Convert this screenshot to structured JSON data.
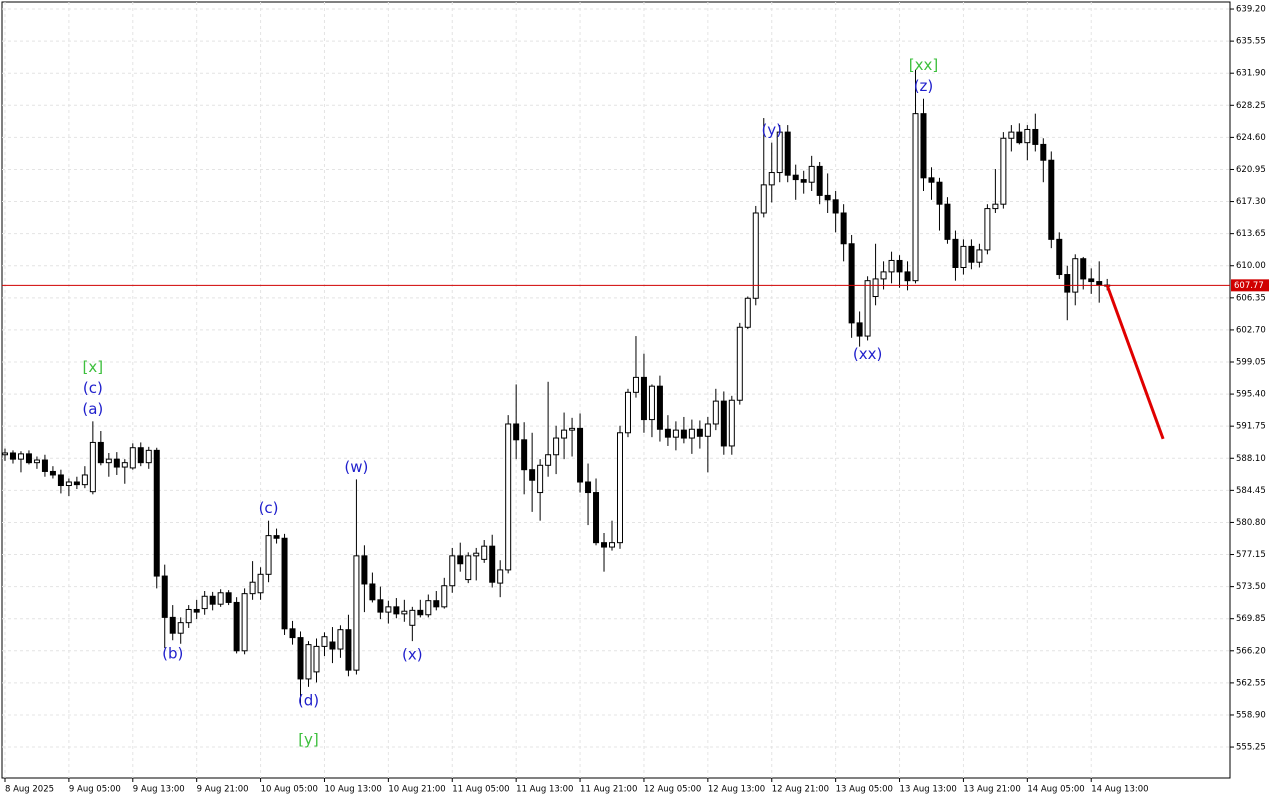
{
  "chart_data": {
    "type": "candlestick",
    "categories": [
      "8 Aug 2025",
      null,
      null,
      null,
      null,
      null,
      null,
      null,
      "9 Aug 05:00",
      null,
      null,
      null,
      null,
      null,
      null,
      null,
      "9 Aug 13:00",
      null,
      null,
      null,
      null,
      null,
      null,
      null,
      "9 Aug 21:00",
      null,
      null,
      null,
      null,
      null,
      null,
      null,
      "10 Aug 05:00",
      null,
      null,
      null,
      null,
      null,
      null,
      null,
      "10 Aug 13:00",
      null,
      null,
      null,
      null,
      null,
      null,
      null,
      "10 Aug 21:00",
      null,
      null,
      null,
      null,
      null,
      null,
      null,
      "11 Aug 05:00",
      null,
      null,
      null,
      null,
      null,
      null,
      null,
      "11 Aug 13:00",
      null,
      null,
      null,
      null,
      null,
      null,
      null,
      "11 Aug 21:00",
      null,
      null,
      null,
      null,
      null,
      null,
      null,
      "12 Aug 05:00",
      null,
      null,
      null,
      null,
      null,
      null,
      null,
      "12 Aug 13:00",
      null,
      null,
      null,
      null,
      null,
      null,
      null,
      "12 Aug 21:00",
      null,
      null,
      null,
      null,
      null,
      null,
      null,
      "13 Aug 05:00",
      null,
      null,
      null,
      null,
      null,
      null,
      null,
      "13 Aug 13:00",
      null,
      null,
      null,
      null,
      null,
      null,
      null,
      "13 Aug 21:00",
      null,
      null,
      null,
      null,
      null,
      null,
      null,
      "14 Aug 05:00",
      null,
      null,
      null,
      null,
      null,
      null,
      null,
      "14 Aug 13:00",
      null,
      null
    ],
    "ohlc": [
      [
        588.5,
        589.2,
        587.8,
        588.7
      ],
      [
        588.7,
        589.0,
        587.5,
        588.0
      ],
      [
        588.0,
        588.9,
        586.5,
        588.6
      ],
      [
        588.6,
        589.0,
        587.4,
        587.6
      ],
      [
        587.6,
        588.3,
        586.9,
        587.9
      ],
      [
        587.9,
        588.5,
        586.0,
        586.6
      ],
      [
        586.6,
        587.2,
        585.8,
        586.2
      ],
      [
        586.2,
        586.8,
        584.1,
        585.0
      ],
      [
        585.0,
        585.8,
        583.8,
        585.4
      ],
      [
        585.4,
        586.0,
        584.6,
        585.1
      ],
      [
        585.1,
        587.2,
        584.7,
        586.2
      ],
      [
        584.3,
        592.3,
        584.0,
        589.9
      ],
      [
        589.9,
        591.2,
        587.3,
        587.6
      ],
      [
        587.6,
        588.7,
        586.0,
        588.0
      ],
      [
        588.0,
        588.8,
        586.2,
        587.1
      ],
      [
        587.1,
        588.0,
        585.2,
        587.6
      ],
      [
        587.0,
        589.8,
        586.8,
        589.3
      ],
      [
        589.3,
        589.9,
        587.2,
        587.6
      ],
      [
        587.6,
        589.4,
        586.9,
        589.0
      ],
      [
        589.0,
        589.3,
        573.3,
        574.7
      ],
      [
        574.7,
        576.0,
        566.5,
        570.0
      ],
      [
        570.0,
        571.4,
        567.4,
        568.2
      ],
      [
        568.2,
        570.0,
        567.0,
        569.4
      ],
      [
        569.4,
        571.4,
        568.8,
        570.9
      ],
      [
        570.9,
        572.0,
        569.8,
        570.6
      ],
      [
        571.0,
        573.0,
        570.3,
        572.4
      ],
      [
        572.4,
        572.9,
        570.8,
        571.5
      ],
      [
        571.5,
        573.2,
        571.2,
        572.8
      ],
      [
        572.8,
        573.1,
        571.4,
        571.7
      ],
      [
        571.7,
        572.3,
        565.9,
        566.2
      ],
      [
        566.2,
        573.3,
        565.8,
        572.7
      ],
      [
        572.7,
        576.4,
        572.0,
        574.0
      ],
      [
        572.8,
        575.7,
        572.0,
        574.9
      ],
      [
        574.9,
        581.0,
        574.0,
        579.3
      ],
      [
        579.3,
        580.1,
        578.4,
        579.0
      ],
      [
        579.0,
        579.5,
        568.0,
        568.7
      ],
      [
        568.7,
        569.6,
        566.9,
        567.7
      ],
      [
        567.7,
        568.4,
        560.1,
        563.0
      ],
      [
        563.0,
        567.3,
        562.1,
        566.9
      ],
      [
        563.8,
        567.6,
        562.6,
        566.7
      ],
      [
        566.7,
        568.3,
        565.6,
        567.8
      ],
      [
        567.2,
        568.9,
        564.8,
        566.4
      ],
      [
        566.4,
        569.1,
        565.4,
        568.6
      ],
      [
        568.6,
        570.3,
        563.3,
        564.0
      ],
      [
        564.0,
        585.7,
        563.5,
        577.0
      ],
      [
        577.0,
        578.2,
        570.6,
        573.8
      ],
      [
        573.8,
        575.1,
        571.7,
        572.0
      ],
      [
        572.0,
        573.5,
        569.8,
        570.6
      ],
      [
        570.6,
        571.9,
        569.3,
        571.2
      ],
      [
        571.2,
        572.2,
        569.9,
        570.4
      ],
      [
        570.4,
        572.0,
        569.5,
        570.7
      ],
      [
        569.1,
        571.2,
        567.3,
        570.8
      ],
      [
        570.8,
        572.0,
        570.0,
        570.3
      ],
      [
        570.3,
        572.6,
        570.0,
        571.9
      ],
      [
        571.9,
        573.0,
        570.8,
        571.2
      ],
      [
        571.2,
        574.5,
        571.0,
        573.6
      ],
      [
        573.6,
        577.9,
        572.8,
        577.0
      ],
      [
        577.0,
        578.5,
        575.2,
        576.1
      ],
      [
        574.3,
        577.4,
        573.9,
        577.0
      ],
      [
        577.0,
        577.9,
        574.2,
        577.3
      ],
      [
        576.6,
        578.8,
        576.2,
        578.1
      ],
      [
        578.1,
        579.4,
        573.4,
        574.0
      ],
      [
        573.9,
        576.5,
        572.3,
        575.4
      ],
      [
        575.4,
        593.0,
        575.0,
        592.0
      ],
      [
        592.0,
        596.5,
        588.0,
        590.2
      ],
      [
        590.2,
        592.2,
        584.0,
        586.8
      ],
      [
        586.8,
        591.0,
        582.0,
        585.6
      ],
      [
        584.2,
        588.0,
        581.0,
        587.3
      ],
      [
        587.3,
        596.8,
        586.0,
        588.5
      ],
      [
        588.5,
        591.8,
        586.3,
        590.4
      ],
      [
        590.4,
        593.3,
        588.0,
        591.3
      ],
      [
        591.3,
        592.7,
        588.3,
        591.5
      ],
      [
        591.5,
        593.2,
        584.2,
        585.4
      ],
      [
        585.4,
        587.5,
        580.5,
        584.2
      ],
      [
        584.2,
        585.8,
        578.2,
        578.5
      ],
      [
        578.5,
        579.6,
        575.2,
        578.0
      ],
      [
        578.0,
        581.0,
        577.6,
        578.5
      ],
      [
        578.5,
        591.8,
        577.8,
        591.0
      ],
      [
        591.0,
        596.0,
        590.5,
        595.6
      ],
      [
        595.6,
        602.0,
        595.0,
        597.3
      ],
      [
        597.3,
        600.0,
        591.0,
        592.5
      ],
      [
        592.5,
        596.5,
        590.5,
        596.3
      ],
      [
        596.3,
        597.5,
        590.0,
        591.4
      ],
      [
        591.4,
        593.0,
        589.5,
        590.5
      ],
      [
        590.5,
        592.3,
        589.0,
        591.3
      ],
      [
        591.3,
        592.8,
        589.8,
        590.4
      ],
      [
        590.4,
        592.5,
        588.6,
        591.4
      ],
      [
        591.4,
        592.4,
        589.2,
        590.6
      ],
      [
        590.6,
        592.8,
        586.5,
        592.0
      ],
      [
        592.0,
        596.0,
        591.3,
        594.6
      ],
      [
        594.6,
        595.7,
        588.5,
        589.5
      ],
      [
        589.5,
        595.2,
        588.5,
        594.7
      ],
      [
        594.7,
        603.5,
        594.2,
        603.0
      ],
      [
        603.0,
        606.5,
        602.8,
        606.3
      ],
      [
        606.3,
        616.8,
        605.5,
        616.0
      ],
      [
        616.0,
        626.8,
        615.5,
        619.2
      ],
      [
        619.2,
        624.0,
        617.2,
        620.6
      ],
      [
        620.6,
        626.0,
        619.5,
        625.2
      ],
      [
        625.2,
        626.0,
        619.5,
        620.3
      ],
      [
        620.3,
        621.5,
        617.5,
        619.8
      ],
      [
        619.8,
        620.8,
        618.2,
        619.5
      ],
      [
        619.5,
        622.5,
        618.5,
        621.3
      ],
      [
        621.3,
        621.8,
        617.0,
        618.0
      ],
      [
        618.0,
        620.5,
        616.0,
        617.5
      ],
      [
        617.5,
        618.5,
        613.8,
        616.0
      ],
      [
        616.0,
        617.0,
        610.5,
        612.5
      ],
      [
        612.5,
        613.5,
        601.8,
        603.5
      ],
      [
        603.5,
        604.8,
        600.8,
        602.0
      ],
      [
        602.0,
        608.8,
        601.5,
        608.3
      ],
      [
        606.5,
        612.5,
        605.5,
        608.5
      ],
      [
        608.5,
        610.5,
        607.3,
        609.3
      ],
      [
        609.3,
        611.6,
        608.0,
        610.6
      ],
      [
        610.6,
        611.2,
        607.5,
        609.3
      ],
      [
        609.3,
        610.5,
        607.2,
        608.3
      ],
      [
        608.3,
        632.3,
        608.0,
        627.3
      ],
      [
        627.3,
        629.0,
        618.5,
        620.0
      ],
      [
        620.0,
        621.2,
        617.5,
        619.5
      ],
      [
        619.5,
        620.0,
        614.0,
        617.0
      ],
      [
        617.0,
        617.8,
        612.5,
        613.0
      ],
      [
        613.0,
        614.0,
        608.3,
        609.8
      ],
      [
        609.8,
        613.0,
        609.0,
        612.2
      ],
      [
        612.2,
        613.0,
        609.6,
        610.4
      ],
      [
        610.4,
        612.5,
        609.8,
        611.8
      ],
      [
        611.8,
        617.0,
        611.3,
        616.5
      ],
      [
        616.5,
        621.0,
        616.0,
        617.0
      ],
      [
        617.0,
        625.2,
        616.5,
        624.5
      ],
      [
        624.5,
        626.0,
        623.0,
        625.2
      ],
      [
        625.2,
        626.2,
        623.8,
        624.0
      ],
      [
        624.0,
        626.0,
        622.0,
        625.5
      ],
      [
        625.5,
        627.3,
        623.0,
        623.8
      ],
      [
        623.8,
        624.5,
        619.5,
        622.0
      ],
      [
        622.0,
        623.0,
        612.0,
        613.0
      ],
      [
        613.0,
        613.8,
        608.5,
        609.0
      ],
      [
        609.0,
        610.0,
        603.8,
        607.0
      ],
      [
        607.0,
        611.3,
        605.5,
        610.8
      ],
      [
        610.8,
        611.0,
        607.3,
        608.5
      ],
      [
        608.5,
        609.7,
        606.8,
        608.2
      ],
      [
        608.2,
        610.5,
        605.8,
        607.8
      ],
      [
        607.8,
        608.5,
        607.2,
        607.77
      ]
    ],
    "up_color": "#ffffff",
    "down_color": "#000000",
    "wick_color": "#000000",
    "xlim": [
      -0.375,
      153.375
    ],
    "ylim": [
      551.73,
      640.0
    ],
    "yticks": [
      {
        "value": 639.2,
        "label": "639.20"
      },
      635.55,
      {
        "value": 631.9,
        "label": "631.90"
      },
      628.25,
      {
        "value": 624.6,
        "label": "624.60"
      },
      620.95,
      {
        "value": 617.3,
        "label": "617.30"
      },
      613.65,
      {
        "value": 610,
        "label": "610.00"
      },
      606.35,
      {
        "value": 602.7,
        "label": "602.70"
      },
      599.05,
      {
        "value": 595.4,
        "label": "595.40"
      },
      591.75,
      {
        "value": 588.1,
        "label": "588.10"
      },
      584.45,
      {
        "value": 580.8,
        "label": "580.80"
      },
      577.15,
      {
        "value": 573.5,
        "label": "573.50"
      },
      569.85,
      {
        "value": 566.2,
        "label": "566.20"
      },
      562.55,
      {
        "value": 558.9,
        "label": "558.90"
      },
      555.25
    ],
    "grid": true,
    "current_price": 607.77,
    "current_price_color": "#d00000",
    "forecast": {
      "x": [
        138,
        145
      ],
      "values": [
        607.77,
        590.3
      ],
      "color": "#e00000"
    },
    "annotations": [
      {
        "text": "(a)",
        "candle": 11,
        "side": "above",
        "color": "#1f1fcc"
      },
      {
        "text": "(c)",
        "candle": 11,
        "side": "above",
        "color": "#1f1fcc"
      },
      {
        "text": "[x]",
        "candle": 11,
        "side": "above",
        "color": "#3cbf3c"
      },
      {
        "text": "(b)",
        "candle": 21,
        "side": "below",
        "color": "#1f1fcc"
      },
      {
        "text": "(c)",
        "candle": 33,
        "side": "above",
        "color": "#1f1fcc"
      },
      {
        "text": "(d)",
        "candle": 38,
        "side": "below",
        "color": "#1f1fcc"
      },
      {
        "text": "[y]",
        "candle": 38,
        "side": "below",
        "color": "#3cbf3c"
      },
      {
        "text": "(w)",
        "candle": 44,
        "side": "above",
        "color": "#1f1fcc"
      },
      {
        "text": "(x)",
        "candle": 51,
        "side": "below",
        "color": "#1f1fcc"
      },
      {
        "text": "(y)",
        "candle": 96,
        "side": "above",
        "color": "#1f1fcc"
      },
      {
        "text": "(xx)",
        "candle": 108,
        "side": "below",
        "color": "#1f1fcc"
      },
      {
        "text": "(z)",
        "candle": 115,
        "side": "above",
        "color": "#1f1fcc"
      },
      {
        "text": "[xx]",
        "candle": 115,
        "side": "above",
        "color": "#3cbf3c"
      }
    ]
  }
}
